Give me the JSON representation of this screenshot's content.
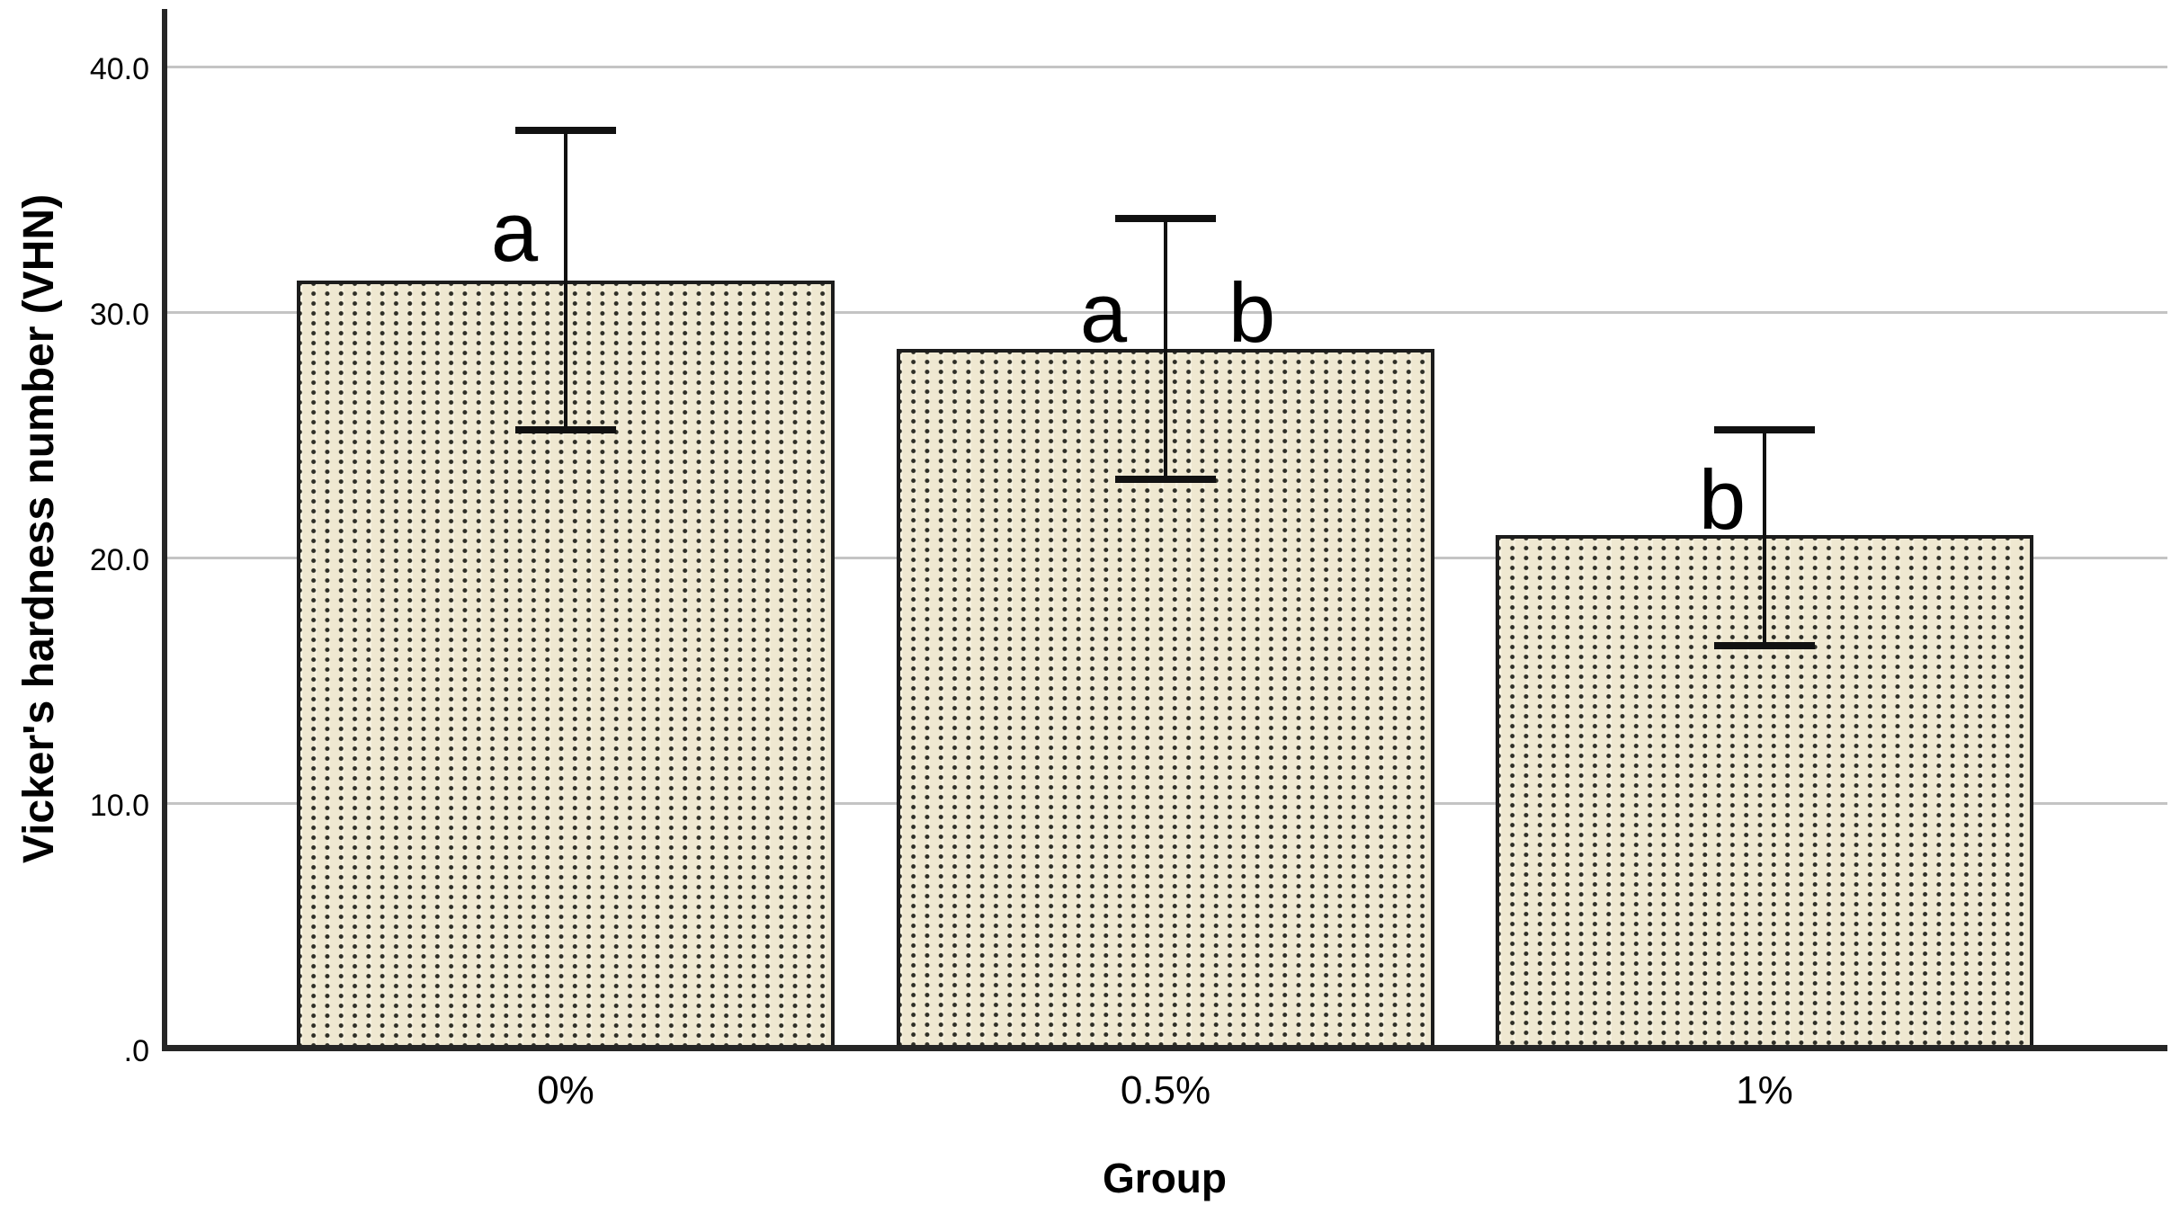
{
  "chart_data": {
    "type": "bar",
    "title": "",
    "xlabel": "Group",
    "ylabel": "Vicker's hardness number (VHN)",
    "categories": [
      "0%",
      "0.5%",
      "1%"
    ],
    "values": [
      31.3,
      28.5,
      20.9
    ],
    "error_low": [
      25.2,
      23.2,
      16.4
    ],
    "error_high": [
      37.4,
      33.8,
      25.2
    ],
    "significance_letters": [
      [
        "a"
      ],
      [
        "a",
        "b"
      ],
      [
        "b"
      ]
    ],
    "ytick_labels": [
      "40.0",
      "30.0",
      "20.0",
      "10.0",
      ".0"
    ],
    "ytick_values": [
      40,
      30,
      20,
      10,
      0
    ],
    "ylim": [
      0,
      43.5
    ],
    "grid": true,
    "legend": "none",
    "colors": {
      "bar_fill": "#efe8d1",
      "bar_pattern_dot": "#2e2e26",
      "bar_border": "#1c1c1c",
      "axis": "#262626",
      "gridline": "#c4c4c4",
      "error_bar": "#111111",
      "text": "#000000",
      "background": "#ffffff"
    }
  }
}
